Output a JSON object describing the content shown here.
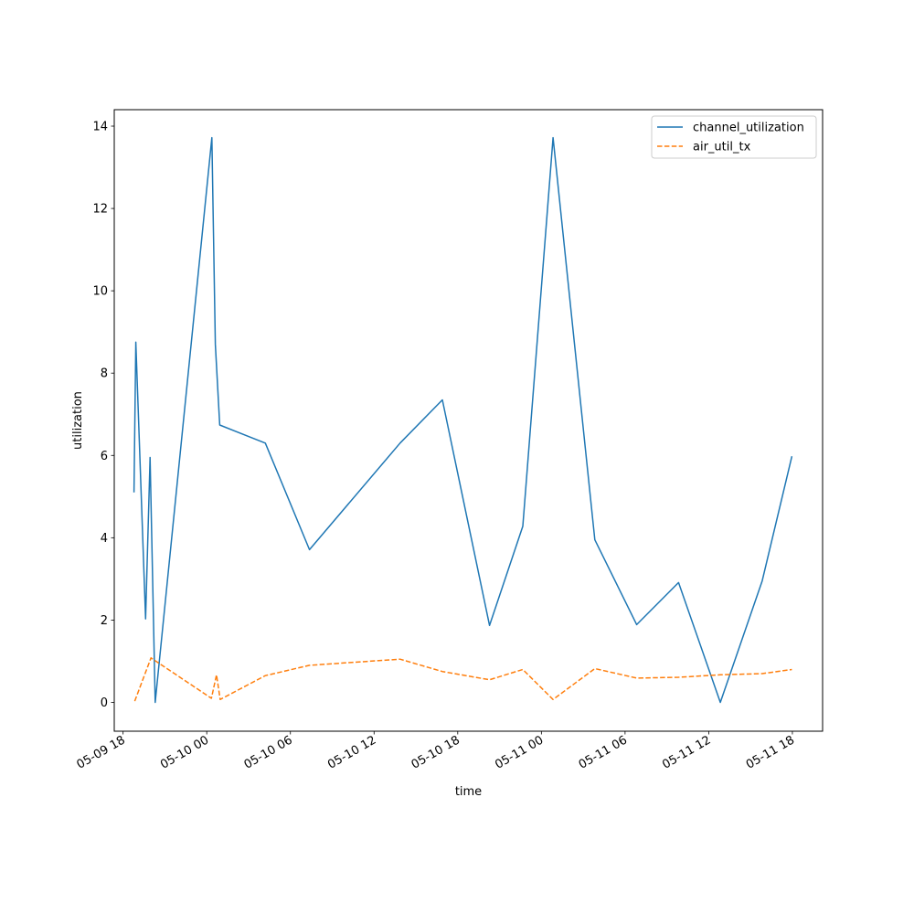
{
  "chart_data": {
    "type": "line",
    "title": "",
    "xlabel": "time",
    "ylabel": "utilization",
    "x_axis_kind": "datetime",
    "xlim": [
      "2024-05-09T17:22:00",
      "2024-05-11T20:10:00"
    ],
    "ylim": [
      -0.7,
      14.4
    ],
    "x_ticks": [
      {
        "t": "2024-05-09T18:00:00",
        "label": "05-09 18"
      },
      {
        "t": "2024-05-10T00:00:00",
        "label": "05-10 00"
      },
      {
        "t": "2024-05-10T06:00:00",
        "label": "05-10 06"
      },
      {
        "t": "2024-05-10T12:00:00",
        "label": "05-10 12"
      },
      {
        "t": "2024-05-10T18:00:00",
        "label": "05-10 18"
      },
      {
        "t": "2024-05-11T00:00:00",
        "label": "05-11 00"
      },
      {
        "t": "2024-05-11T06:00:00",
        "label": "05-11 06"
      },
      {
        "t": "2024-05-11T12:00:00",
        "label": "05-11 12"
      },
      {
        "t": "2024-05-11T18:00:00",
        "label": "05-11 18"
      }
    ],
    "y_ticks": [
      0,
      2,
      4,
      6,
      8,
      10,
      12,
      14
    ],
    "grid": false,
    "legend_position": "upper right",
    "series": [
      {
        "name": "channel_utilization",
        "color": "#1f77b4",
        "dash": "solid",
        "points": [
          {
            "t": "2024-05-09T18:47:00",
            "y": 5.1
          },
          {
            "t": "2024-05-09T18:55:00",
            "y": 8.75
          },
          {
            "t": "2024-05-09T19:37:00",
            "y": 2.03
          },
          {
            "t": "2024-05-09T19:56:00",
            "y": 5.95
          },
          {
            "t": "2024-05-09T20:18:00",
            "y": 0.0
          },
          {
            "t": "2024-05-10T00:22:00",
            "y": 13.72
          },
          {
            "t": "2024-05-10T00:37:00",
            "y": 8.7
          },
          {
            "t": "2024-05-10T00:56:00",
            "y": 6.74
          },
          {
            "t": "2024-05-10T04:12:00",
            "y": 6.3
          },
          {
            "t": "2024-05-10T07:22:00",
            "y": 3.71
          },
          {
            "t": "2024-05-10T13:52:00",
            "y": 6.3
          },
          {
            "t": "2024-05-10T16:54:00",
            "y": 7.35
          },
          {
            "t": "2024-05-10T20:17:00",
            "y": 1.87
          },
          {
            "t": "2024-05-10T22:40:00",
            "y": 4.28
          },
          {
            "t": "2024-05-11T00:50:00",
            "y": 13.72
          },
          {
            "t": "2024-05-11T03:50:00",
            "y": 3.95
          },
          {
            "t": "2024-05-11T06:50:00",
            "y": 1.89
          },
          {
            "t": "2024-05-11T09:50:00",
            "y": 2.91
          },
          {
            "t": "2024-05-11T12:50:00",
            "y": 0.0
          },
          {
            "t": "2024-05-11T15:50:00",
            "y": 2.95
          },
          {
            "t": "2024-05-11T17:58:00",
            "y": 5.98
          }
        ]
      },
      {
        "name": "air_util_tx",
        "color": "#ff7f0e",
        "dash": "dashed",
        "points": [
          {
            "t": "2024-05-09T18:50:00",
            "y": 0.03
          },
          {
            "t": "2024-05-09T20:00:00",
            "y": 1.08
          },
          {
            "t": "2024-05-10T00:20:00",
            "y": 0.1
          },
          {
            "t": "2024-05-10T00:42:00",
            "y": 0.67
          },
          {
            "t": "2024-05-10T00:58:00",
            "y": 0.07
          },
          {
            "t": "2024-05-10T04:12:00",
            "y": 0.65
          },
          {
            "t": "2024-05-10T07:22:00",
            "y": 0.9
          },
          {
            "t": "2024-05-10T13:52:00",
            "y": 1.05
          },
          {
            "t": "2024-05-10T16:54:00",
            "y": 0.75
          },
          {
            "t": "2024-05-10T20:17:00",
            "y": 0.55
          },
          {
            "t": "2024-05-10T22:40:00",
            "y": 0.8
          },
          {
            "t": "2024-05-11T00:50:00",
            "y": 0.07
          },
          {
            "t": "2024-05-11T03:50:00",
            "y": 0.82
          },
          {
            "t": "2024-05-11T06:50:00",
            "y": 0.59
          },
          {
            "t": "2024-05-11T09:50:00",
            "y": 0.61
          },
          {
            "t": "2024-05-11T12:50:00",
            "y": 0.67
          },
          {
            "t": "2024-05-11T15:50:00",
            "y": 0.7
          },
          {
            "t": "2024-05-11T17:58:00",
            "y": 0.8
          }
        ]
      }
    ]
  }
}
